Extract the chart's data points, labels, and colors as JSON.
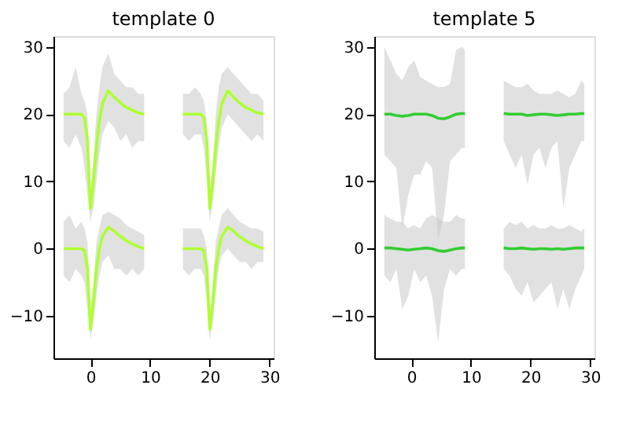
{
  "chart_data": [
    {
      "type": "line",
      "title": "template 0",
      "xlim": [
        -6.2,
        30.7
      ],
      "ylim": [
        -16.3,
        31.6
      ],
      "xticks": [
        0,
        10,
        20,
        30
      ],
      "yticks": [
        -10,
        0,
        10,
        20,
        30
      ],
      "grid": false,
      "legend": false,
      "series": [
        {
          "color": "#adff2f",
          "x": [
            -4.5,
            -3.5,
            -2.5,
            -1.5,
            -1,
            -0.5,
            0,
            0.5,
            1,
            1.5,
            2,
            3,
            4,
            5,
            6,
            7,
            8,
            9
          ],
          "values": [
            0,
            0,
            0,
            0,
            -0.3,
            -3,
            -12,
            -8,
            -3,
            0,
            1.8,
            3.2,
            2.6,
            1.8,
            1.2,
            0.7,
            0.3,
            0
          ],
          "lower": [
            -4,
            -5,
            -3,
            -4,
            -5,
            -9,
            -13.5,
            -11,
            -7,
            -4,
            -2,
            -1,
            -3,
            -3,
            -4,
            -3,
            -4,
            -3
          ],
          "upper": [
            4,
            5,
            3,
            4,
            3,
            1,
            -9,
            -5,
            1,
            3,
            5,
            5.5,
            5,
            4.5,
            3.5,
            3,
            2.5,
            2
          ]
        },
        {
          "color": "#adff2f",
          "x": [
            -4.5,
            -3.5,
            -2.5,
            -1.5,
            -1,
            -0.5,
            0,
            0.5,
            1,
            1.5,
            2,
            3,
            4,
            5,
            6,
            7,
            8,
            9
          ],
          "values": [
            20,
            20,
            20,
            20,
            19.5,
            16,
            6,
            10,
            15,
            19,
            21.5,
            23.5,
            22.5,
            21.7,
            21,
            20.6,
            20.2,
            20
          ],
          "lower": [
            16,
            15,
            17,
            15,
            12,
            8,
            4,
            6,
            10,
            14,
            17,
            19,
            18,
            16,
            17,
            15,
            16,
            16
          ],
          "upper": [
            23,
            24,
            27,
            23,
            22,
            20,
            8,
            14,
            20,
            24,
            27,
            29,
            26,
            25,
            24,
            24,
            23,
            23
          ]
        },
        {
          "color": "#adff2f",
          "x": [
            15.5,
            16.5,
            17.5,
            18.5,
            19,
            19.5,
            20,
            20.5,
            21,
            21.5,
            22,
            23,
            24,
            25,
            26,
            27,
            28,
            29
          ],
          "values": [
            0,
            0,
            0,
            0,
            -0.3,
            -3,
            -12,
            -8,
            -3,
            0,
            1.8,
            3.2,
            2.6,
            1.8,
            1.2,
            0.7,
            0.3,
            0
          ],
          "lower": [
            -3,
            -4,
            -3,
            -3,
            -4,
            -8,
            -13.5,
            -11,
            -7,
            -3,
            -1,
            0,
            -1,
            -2,
            -2,
            -3,
            -2,
            -2
          ],
          "upper": [
            3,
            3,
            3,
            3,
            2,
            0,
            -10,
            -5,
            1,
            3,
            5,
            6,
            5,
            4,
            3.5,
            3,
            3,
            2.5
          ]
        },
        {
          "color": "#adff2f",
          "x": [
            15.5,
            16.5,
            17.5,
            18.5,
            19,
            19.5,
            20,
            20.5,
            21,
            21.5,
            22,
            23,
            24,
            25,
            26,
            27,
            28,
            29
          ],
          "values": [
            20,
            20,
            20,
            20,
            19.5,
            16,
            6,
            10,
            15,
            19,
            21.5,
            23.5,
            22.5,
            21.7,
            21,
            20.6,
            20.2,
            20
          ],
          "lower": [
            17,
            16,
            17,
            17,
            15,
            10,
            4,
            7,
            11,
            15,
            18,
            20,
            19,
            18,
            17,
            16,
            17,
            16
          ],
          "upper": [
            23,
            23,
            24,
            23,
            22,
            19,
            8,
            13,
            20,
            24,
            26,
            27,
            26,
            25,
            24,
            23,
            23,
            22
          ]
        }
      ]
    },
    {
      "type": "line",
      "title": "template 5",
      "xlim": [
        -6.2,
        30.7
      ],
      "ylim": [
        -16.3,
        31.6
      ],
      "xticks": [
        0,
        10,
        20,
        30
      ],
      "yticks": [
        -10,
        0,
        10,
        20,
        30
      ],
      "grid": false,
      "legend": false,
      "series": [
        {
          "color": "#32cd32",
          "x": [
            -4.5,
            -3.5,
            -2.5,
            -1.5,
            -0.5,
            0.5,
            1.5,
            2.5,
            3.5,
            4.5,
            5.5,
            6.5,
            7.5,
            8.5,
            9
          ],
          "values": [
            0.1,
            0.1,
            0,
            -0.1,
            -0.2,
            -0.1,
            0,
            0.1,
            0,
            -0.3,
            -0.4,
            -0.2,
            0,
            0.1,
            0.1
          ],
          "lower": [
            -4,
            -5,
            -3,
            -9,
            -7,
            -3,
            -5,
            -4,
            -7,
            -14,
            -6,
            -3,
            -4,
            -3,
            -3
          ],
          "upper": [
            5,
            4.5,
            4,
            4,
            3,
            3.5,
            3,
            4.5,
            5,
            4.5,
            4,
            4,
            5,
            4.5,
            4.5
          ]
        },
        {
          "color": "#32cd32",
          "x": [
            -4.5,
            -3.5,
            -2.5,
            -1.5,
            -0.5,
            0.5,
            1.5,
            2.5,
            3.5,
            4.5,
            5.5,
            6.5,
            7.5,
            8.5,
            9
          ],
          "values": [
            20,
            20,
            19.8,
            19.7,
            19.8,
            20,
            20,
            20,
            19.8,
            19.4,
            19.3,
            19.6,
            20,
            20.1,
            20.1
          ],
          "lower": [
            14,
            13,
            12,
            3,
            8,
            11,
            11,
            13,
            12,
            1.5,
            5,
            13,
            14,
            15,
            15
          ],
          "upper": [
            30,
            28,
            26,
            25,
            27,
            28,
            25.5,
            25,
            24.5,
            24,
            24,
            24.5,
            29.5,
            30,
            29.5
          ]
        },
        {
          "color": "#32cd32",
          "x": [
            15.5,
            16.5,
            17.5,
            18.5,
            19.5,
            20.5,
            21.5,
            22.5,
            23.5,
            24.5,
            25.5,
            26.5,
            27.5,
            28.5,
            29
          ],
          "values": [
            0.1,
            0,
            0,
            0.1,
            0,
            -0.1,
            0,
            0,
            -0.1,
            0,
            -0.1,
            0,
            0.1,
            0.1,
            0.1
          ],
          "lower": [
            -3,
            -4,
            -6,
            -7,
            -5,
            -8,
            -7,
            -6,
            -5,
            -9,
            -6,
            -9,
            -6,
            -4,
            -3
          ],
          "upper": [
            3,
            4,
            3.5,
            4,
            3,
            3.5,
            3,
            3,
            3.5,
            3,
            3,
            3.5,
            3,
            2.5,
            3
          ]
        },
        {
          "color": "#32cd32",
          "x": [
            15.5,
            16.5,
            17.5,
            18.5,
            19.5,
            20.5,
            21.5,
            22.5,
            23.5,
            24.5,
            25.5,
            26.5,
            27.5,
            28.5,
            29
          ],
          "values": [
            20.1,
            20,
            20,
            20,
            19.8,
            19.9,
            20,
            20,
            19.9,
            19.8,
            19.9,
            20,
            20,
            20.1,
            20.1
          ],
          "lower": [
            16,
            14,
            12,
            14,
            9.5,
            14,
            15,
            12,
            15,
            16,
            6,
            12,
            14,
            16,
            16
          ],
          "upper": [
            25,
            24.5,
            24,
            24,
            24.5,
            23.5,
            23,
            23,
            23,
            23.5,
            23,
            22.5,
            23,
            25,
            24.5
          ]
        }
      ]
    }
  ]
}
